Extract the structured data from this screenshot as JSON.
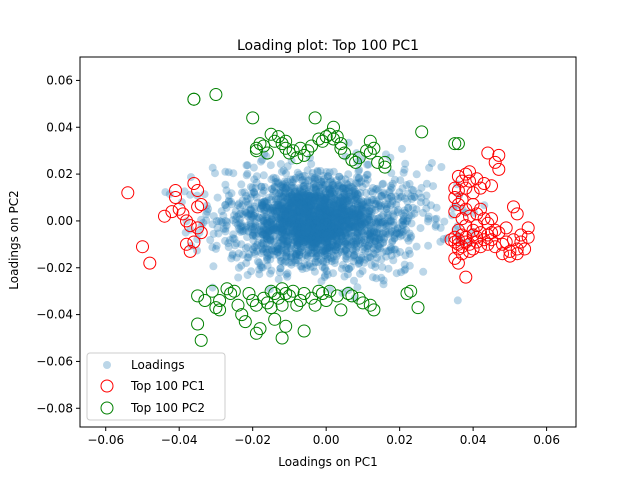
{
  "chart_data": {
    "type": "scatter",
    "title": "Loading plot: Top 100 PC1",
    "xlabel": "Loadings on PC1",
    "ylabel": "Loadings on PC2",
    "xlim": [
      -0.067,
      0.068
    ],
    "ylim": [
      -0.088,
      0.07
    ],
    "xticks": [
      -0.06,
      -0.04,
      -0.02,
      0.0,
      0.02,
      0.04,
      0.06
    ],
    "xtick_labels": [
      "−0.06",
      "−0.04",
      "−0.02",
      "0.00",
      "0.02",
      "0.04",
      "0.06"
    ],
    "yticks": [
      -0.08,
      -0.06,
      -0.04,
      -0.02,
      0.0,
      0.02,
      0.04,
      0.06
    ],
    "ytick_labels": [
      "−0.08",
      "−0.06",
      "−0.04",
      "−0.02",
      "0.00",
      "0.02",
      "0.04",
      "0.06"
    ],
    "grid": false,
    "legend_position": "lower-left",
    "colors": {
      "loadings": "#1f77b4",
      "pc1": "#ff0000",
      "pc2": "#008000"
    },
    "series": [
      {
        "name": "Loadings",
        "style": "filled-translucent",
        "cloud": {
          "count": 2400,
          "core_center": [
            -0.004,
            0.0
          ],
          "core_sd": [
            0.0085,
            0.0085
          ],
          "core_fraction": 0.55,
          "spread_center": [
            0.0,
            0.0
          ],
          "spread_sd": [
            0.015,
            0.011
          ]
        }
      },
      {
        "name": "Top 100 PC1",
        "style": "hollow",
        "points": [
          [
            -0.054,
            0.012
          ],
          [
            -0.05,
            -0.011
          ],
          [
            -0.048,
            -0.018
          ],
          [
            -0.044,
            0.002
          ],
          [
            -0.042,
            0.004
          ],
          [
            -0.041,
            0.01
          ],
          [
            -0.041,
            0.013
          ],
          [
            -0.04,
            0.005
          ],
          [
            -0.039,
            0.003
          ],
          [
            -0.038,
            -0.01
          ],
          [
            -0.037,
            -0.013
          ],
          [
            -0.036,
            -0.009
          ],
          [
            -0.036,
            0.016
          ],
          [
            -0.035,
            0.013
          ],
          [
            -0.035,
            0.006
          ],
          [
            -0.034,
            -0.005
          ],
          [
            -0.037,
            -0.002
          ],
          [
            -0.038,
            0.0
          ],
          [
            -0.035,
            -0.003
          ],
          [
            -0.034,
            0.007
          ],
          [
            0.035,
            -0.007
          ],
          [
            0.035,
            -0.009
          ],
          [
            0.036,
            -0.01
          ],
          [
            0.036,
            -0.012
          ],
          [
            0.036,
            -0.008
          ],
          [
            0.037,
            -0.006
          ],
          [
            0.037,
            -0.011
          ],
          [
            0.037,
            -0.014
          ],
          [
            0.038,
            -0.024
          ],
          [
            0.038,
            -0.009
          ],
          [
            0.038,
            -0.007
          ],
          [
            0.039,
            -0.013
          ],
          [
            0.039,
            -0.01
          ],
          [
            0.04,
            -0.006
          ],
          [
            0.04,
            -0.012
          ],
          [
            0.041,
            -0.009
          ],
          [
            0.041,
            -0.007
          ],
          [
            0.042,
            -0.011
          ],
          [
            0.042,
            -0.005
          ],
          [
            0.043,
            -0.008
          ],
          [
            0.044,
            -0.006
          ],
          [
            0.044,
            -0.01
          ],
          [
            0.045,
            -0.008
          ],
          [
            0.045,
            -0.005
          ],
          [
            0.046,
            -0.011
          ],
          [
            0.047,
            -0.005
          ],
          [
            0.048,
            -0.01
          ],
          [
            0.048,
            -0.014
          ],
          [
            0.049,
            -0.009
          ],
          [
            0.05,
            -0.015
          ],
          [
            0.051,
            -0.008
          ],
          [
            0.052,
            -0.012
          ],
          [
            0.052,
            -0.014
          ],
          [
            0.053,
            -0.006
          ],
          [
            0.054,
            -0.012
          ],
          [
            0.055,
            -0.003
          ],
          [
            0.055,
            -0.007
          ],
          [
            0.051,
            0.006
          ],
          [
            0.052,
            0.003
          ],
          [
            0.046,
            0.025
          ],
          [
            0.047,
            0.022
          ],
          [
            0.047,
            0.028
          ],
          [
            0.045,
            0.015
          ],
          [
            0.044,
            0.029
          ],
          [
            0.043,
            0.016
          ],
          [
            0.042,
            0.005
          ],
          [
            0.041,
            0.003
          ],
          [
            0.04,
            0.007
          ],
          [
            0.04,
            0.012
          ],
          [
            0.039,
            0.017
          ],
          [
            0.039,
            0.021
          ],
          [
            0.038,
            0.014
          ],
          [
            0.038,
            0.005
          ],
          [
            0.037,
            0.009
          ],
          [
            0.037,
            0.001
          ],
          [
            0.036,
            0.013
          ],
          [
            0.036,
            0.019
          ],
          [
            0.035,
            0.01
          ],
          [
            0.035,
            0.004
          ],
          [
            0.035,
            0.014
          ],
          [
            0.036,
            0.007
          ],
          [
            0.037,
            0.017
          ],
          [
            0.038,
            0.02
          ],
          [
            0.039,
            0.002
          ],
          [
            0.041,
            0.018
          ],
          [
            0.042,
            0.014
          ],
          [
            0.043,
            0.001
          ],
          [
            0.044,
            -0.001
          ],
          [
            0.034,
            -0.008
          ],
          [
            0.035,
            -0.016
          ],
          [
            0.036,
            -0.018
          ],
          [
            0.04,
            -0.004
          ],
          [
            0.046,
            -0.004
          ],
          [
            0.049,
            -0.003
          ],
          [
            0.05,
            -0.013
          ],
          [
            0.053,
            -0.009
          ],
          [
            0.036,
            -0.004
          ],
          [
            0.038,
            -0.002
          ],
          [
            0.041,
            -0.002
          ],
          [
            0.045,
            0.001
          ]
        ]
      },
      {
        "name": "Top 100 PC2",
        "style": "hollow",
        "points": [
          [
            -0.036,
            0.052
          ],
          [
            -0.03,
            0.054
          ],
          [
            -0.036,
            0.052
          ],
          [
            -0.02,
            0.044
          ],
          [
            -0.019,
            0.031
          ],
          [
            -0.019,
            0.03
          ],
          [
            -0.018,
            0.033
          ],
          [
            -0.017,
            0.032
          ],
          [
            -0.016,
            0.029
          ],
          [
            -0.015,
            0.037
          ],
          [
            -0.014,
            0.034
          ],
          [
            -0.013,
            0.036
          ],
          [
            -0.012,
            0.033
          ],
          [
            -0.011,
            0.034
          ],
          [
            -0.011,
            0.031
          ],
          [
            -0.01,
            0.029
          ],
          [
            -0.009,
            0.03
          ],
          [
            -0.008,
            0.027
          ],
          [
            -0.007,
            0.031
          ],
          [
            -0.006,
            0.028
          ],
          [
            -0.005,
            0.03
          ],
          [
            -0.004,
            0.032
          ],
          [
            -0.003,
            0.044
          ],
          [
            -0.002,
            0.035
          ],
          [
            -0.001,
            0.034
          ],
          [
            0.0,
            0.036
          ],
          [
            0.001,
            0.037
          ],
          [
            0.002,
            0.04
          ],
          [
            0.002,
            0.035
          ],
          [
            0.003,
            0.036
          ],
          [
            0.004,
            0.033
          ],
          [
            0.004,
            0.031
          ],
          [
            0.005,
            0.029
          ],
          [
            0.007,
            0.026
          ],
          [
            0.008,
            0.025
          ],
          [
            0.009,
            0.027
          ],
          [
            0.011,
            0.03
          ],
          [
            0.012,
            0.034
          ],
          [
            0.012,
            0.029
          ],
          [
            0.013,
            0.031
          ],
          [
            0.014,
            0.025
          ],
          [
            0.016,
            0.025
          ],
          [
            0.016,
            0.023
          ],
          [
            0.026,
            0.038
          ],
          [
            0.035,
            0.033
          ],
          [
            0.036,
            0.033
          ],
          [
            -0.035,
            -0.032
          ],
          [
            -0.035,
            -0.044
          ],
          [
            -0.034,
            -0.051
          ],
          [
            -0.031,
            -0.03
          ],
          [
            -0.03,
            -0.037
          ],
          [
            -0.029,
            -0.034
          ],
          [
            -0.029,
            -0.038
          ],
          [
            -0.027,
            -0.029
          ],
          [
            -0.026,
            -0.031
          ],
          [
            -0.025,
            -0.03
          ],
          [
            -0.024,
            -0.036
          ],
          [
            -0.023,
            -0.04
          ],
          [
            -0.022,
            -0.043
          ],
          [
            -0.021,
            -0.031
          ],
          [
            -0.02,
            -0.034
          ],
          [
            -0.019,
            -0.036
          ],
          [
            -0.019,
            -0.048
          ],
          [
            -0.018,
            -0.046
          ],
          [
            -0.017,
            -0.033
          ],
          [
            -0.016,
            -0.035
          ],
          [
            -0.015,
            -0.03
          ],
          [
            -0.015,
            -0.037
          ],
          [
            -0.014,
            -0.031
          ],
          [
            -0.014,
            -0.042
          ],
          [
            -0.013,
            -0.033
          ],
          [
            -0.012,
            -0.029
          ],
          [
            -0.012,
            -0.036
          ],
          [
            -0.011,
            -0.031
          ],
          [
            -0.011,
            -0.045
          ],
          [
            -0.01,
            -0.032
          ],
          [
            -0.009,
            -0.03
          ],
          [
            -0.008,
            -0.036
          ],
          [
            -0.007,
            -0.034
          ],
          [
            -0.006,
            -0.031
          ],
          [
            -0.006,
            -0.047
          ],
          [
            -0.004,
            -0.033
          ],
          [
            -0.003,
            -0.036
          ],
          [
            -0.002,
            -0.03
          ],
          [
            -0.001,
            -0.031
          ],
          [
            0.0,
            -0.034
          ],
          [
            0.001,
            -0.03
          ],
          [
            0.003,
            -0.032
          ],
          [
            0.004,
            -0.038
          ],
          [
            0.006,
            -0.031
          ],
          [
            0.007,
            -0.032
          ],
          [
            0.009,
            -0.033
          ],
          [
            0.01,
            -0.035
          ],
          [
            0.012,
            -0.036
          ],
          [
            0.013,
            -0.038
          ],
          [
            0.022,
            -0.031
          ],
          [
            0.023,
            -0.03
          ],
          [
            0.025,
            -0.037
          ],
          [
            -0.012,
            -0.05
          ],
          [
            -0.033,
            -0.034
          ]
        ]
      }
    ]
  }
}
